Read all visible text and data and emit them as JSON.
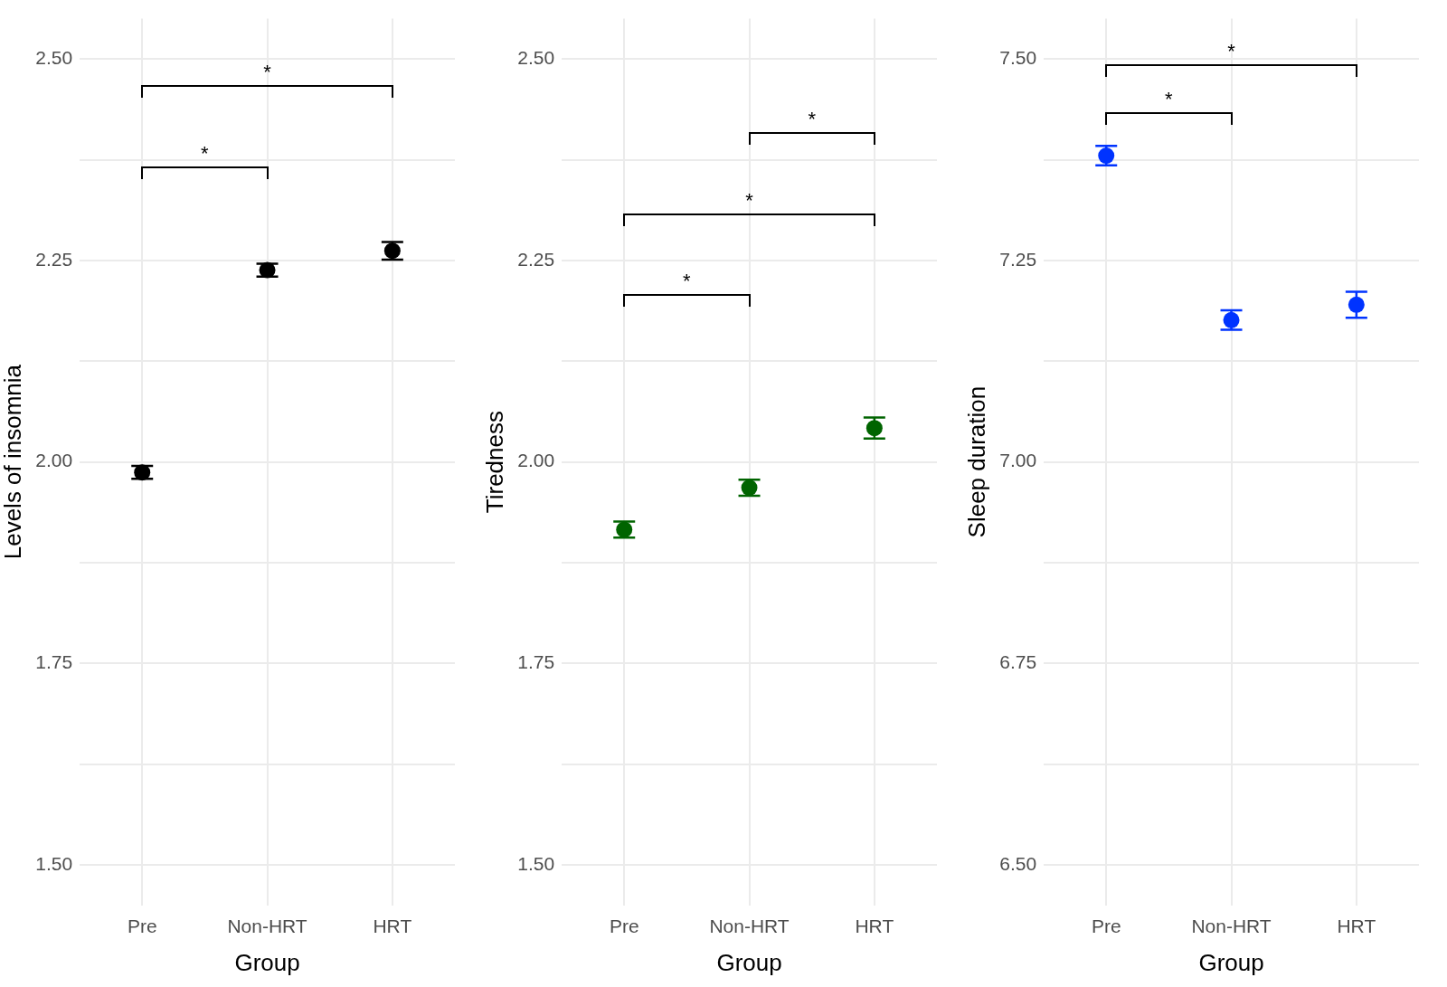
{
  "chart_data": [
    {
      "type": "scatter",
      "categories": [
        "Pre",
        "Non-HRT",
        "HRT"
      ],
      "values": [
        1.987,
        2.238,
        2.262
      ],
      "errors": [
        0.008,
        0.008,
        0.011
      ],
      "color": "#000000",
      "marker": "circle",
      "xlabel": "Group",
      "ylabel": "Levels of insomnia",
      "ylim": [
        1.45,
        2.55
      ],
      "yticks": [
        {
          "value": 1.5,
          "label": "1.50"
        },
        {
          "value": 1.625,
          "label": null
        },
        {
          "value": 1.75,
          "label": "1.75"
        },
        {
          "value": 1.875,
          "label": null
        },
        {
          "value": 2,
          "label": "2.00"
        },
        {
          "value": 2.125,
          "label": null
        },
        {
          "value": 2.25,
          "label": "2.25"
        },
        {
          "value": 2.375,
          "label": null
        },
        {
          "value": 2.5,
          "label": "2.50"
        }
      ],
      "grid": true,
      "annotations": [
        "*",
        "*"
      ]
    },
    {
      "type": "scatter",
      "categories": [
        "Pre",
        "Non-HRT",
        "HRT"
      ],
      "values": [
        1.916,
        1.968,
        2.042
      ],
      "errors": [
        0.01,
        0.01,
        0.013
      ],
      "color": "#006400",
      "marker": "circle",
      "xlabel": "Group",
      "ylabel": "Tiredness",
      "ylim": [
        1.45,
        2.55
      ],
      "yticks": [
        {
          "value": 1.5,
          "label": "1.50"
        },
        {
          "value": 1.625,
          "label": null
        },
        {
          "value": 1.75,
          "label": "1.75"
        },
        {
          "value": 1.875,
          "label": null
        },
        {
          "value": 2,
          "label": "2.00"
        },
        {
          "value": 2.125,
          "label": null
        },
        {
          "value": 2.25,
          "label": "2.25"
        },
        {
          "value": 2.375,
          "label": null
        },
        {
          "value": 2.5,
          "label": "2.50"
        }
      ],
      "grid": true,
      "annotations": [
        "*",
        "*",
        "*"
      ]
    },
    {
      "type": "scatter",
      "categories": [
        "Pre",
        "Non-HRT",
        "HRT"
      ],
      "values": [
        7.38,
        7.176,
        7.195
      ],
      "errors": [
        0.012,
        0.012,
        0.016
      ],
      "color": "#0033ff",
      "marker": "circle",
      "xlabel": "Group",
      "ylabel": "Sleep duration",
      "ylim": [
        6.45,
        7.55
      ],
      "yticks": [
        {
          "value": 6.5,
          "label": "6.50"
        },
        {
          "value": 6.625,
          "label": null
        },
        {
          "value": 6.75,
          "label": "6.75"
        },
        {
          "value": 6.875,
          "label": null
        },
        {
          "value": 7,
          "label": "7.00"
        },
        {
          "value": 7.125,
          "label": null
        },
        {
          "value": 7.25,
          "label": "7.25"
        },
        {
          "value": 7.375,
          "label": null
        },
        {
          "value": 7.5,
          "label": "7.50"
        }
      ],
      "grid": true,
      "annotations": [
        "*",
        "*"
      ]
    }
  ]
}
